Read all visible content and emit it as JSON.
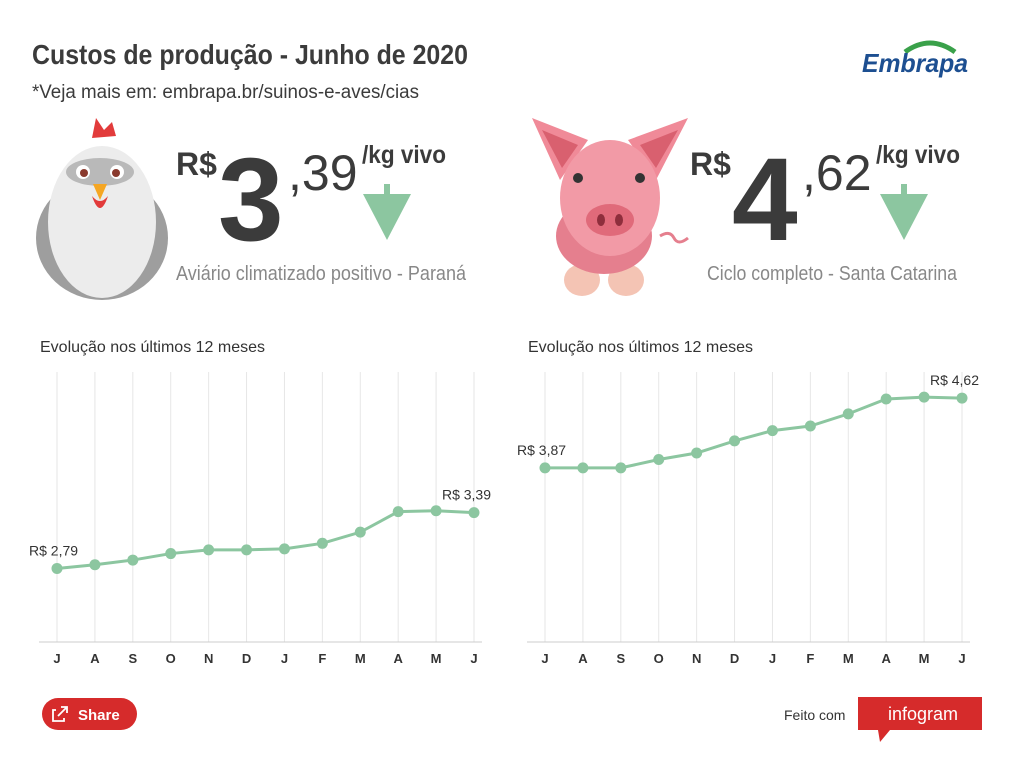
{
  "header": {
    "title": "Custos de produção - Junho de 2020",
    "subtitle": "*Veja mais em: embrapa.br/suinos-e-aves/cias"
  },
  "logo": "Embrapa",
  "cards": [
    {
      "currency": "R$",
      "integer": "3",
      "decimals": ",39",
      "unit": "/kg vivo",
      "description": "Aviário climatizado positivo - Paraná"
    },
    {
      "currency": "R$",
      "integer": "4",
      "decimals": ",62",
      "unit": "/kg vivo",
      "description": "Ciclo completo - Santa Catarina"
    }
  ],
  "chart_data": [
    {
      "type": "line",
      "title": "Evolução nos últimos 12 meses",
      "categories": [
        "J",
        "A",
        "S",
        "O",
        "N",
        "D",
        "J",
        "F",
        "M",
        "A",
        "M",
        "J"
      ],
      "values": [
        2.79,
        2.83,
        2.88,
        2.95,
        2.99,
        2.99,
        3.0,
        3.06,
        3.18,
        3.4,
        3.41,
        3.39
      ],
      "value_labels": [
        "R$ 2,79",
        null,
        null,
        null,
        null,
        null,
        null,
        null,
        null,
        null,
        null,
        "R$ 3,39"
      ],
      "color": "#8cc6a0",
      "ylim": [
        2,
        4.9
      ],
      "grid": true
    },
    {
      "type": "line",
      "title": "Evolução nos últimos 12 meses",
      "categories": [
        "J",
        "A",
        "S",
        "O",
        "N",
        "D",
        "J",
        "F",
        "M",
        "A",
        "M",
        "J"
      ],
      "values": [
        3.87,
        3.87,
        3.87,
        3.96,
        4.03,
        4.16,
        4.27,
        4.32,
        4.45,
        4.61,
        4.63,
        4.62
      ],
      "value_labels": [
        "R$ 3,87",
        null,
        null,
        null,
        null,
        null,
        null,
        null,
        null,
        null,
        null,
        "R$ 4,62"
      ],
      "color": "#8cc6a0",
      "ylim": [
        2,
        4.9
      ],
      "grid": true
    }
  ],
  "footer": {
    "share": "Share",
    "made_with": "Feito com",
    "brand": "infogram"
  }
}
